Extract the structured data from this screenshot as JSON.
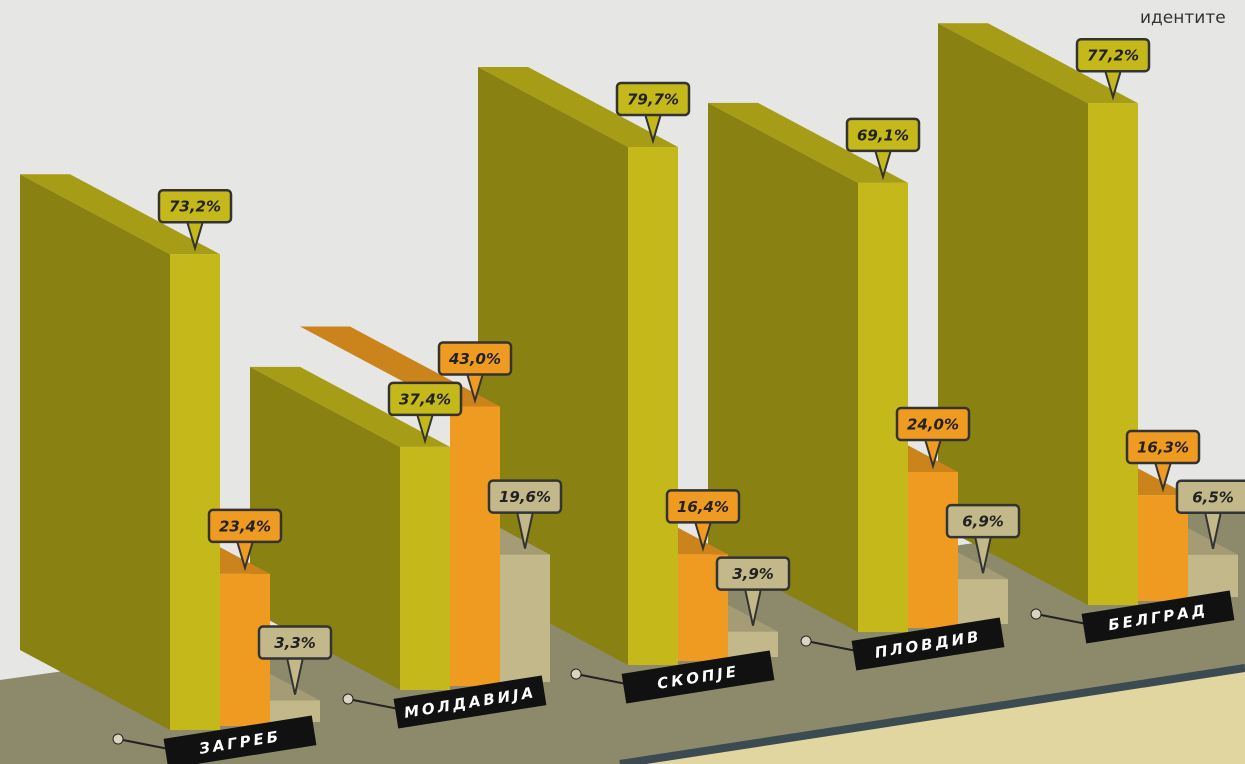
{
  "chart_data": {
    "type": "bar3d",
    "annotation": "идентите",
    "categories": [
      "ЗАГРЕБ",
      "МОЛДАВИЈА",
      "СКОПЈЕ",
      "ПЛОВДИВ",
      "БЕЛГРАД"
    ],
    "series": [
      {
        "color": "#c4b81a",
        "values": [
          73.2,
          37.4,
          79.7,
          69.1,
          77.2
        ],
        "value_labels": [
          "73,2%",
          "37,4%",
          "79,7%",
          "69,1%",
          "77,2%"
        ]
      },
      {
        "color": "#ef9a20",
        "values": [
          23.4,
          43.0,
          16.4,
          24.0,
          16.3
        ],
        "value_labels": [
          "23,4%",
          "43,0%",
          "16,4%",
          "24,0%",
          "16,3%"
        ]
      },
      {
        "color": "#c2b88a",
        "values": [
          3.3,
          19.6,
          3.9,
          6.9,
          6.5
        ],
        "value_labels": [
          "3,3%",
          "19,6%",
          "3,9%",
          "6,9%",
          "6,5%"
        ]
      }
    ]
  }
}
